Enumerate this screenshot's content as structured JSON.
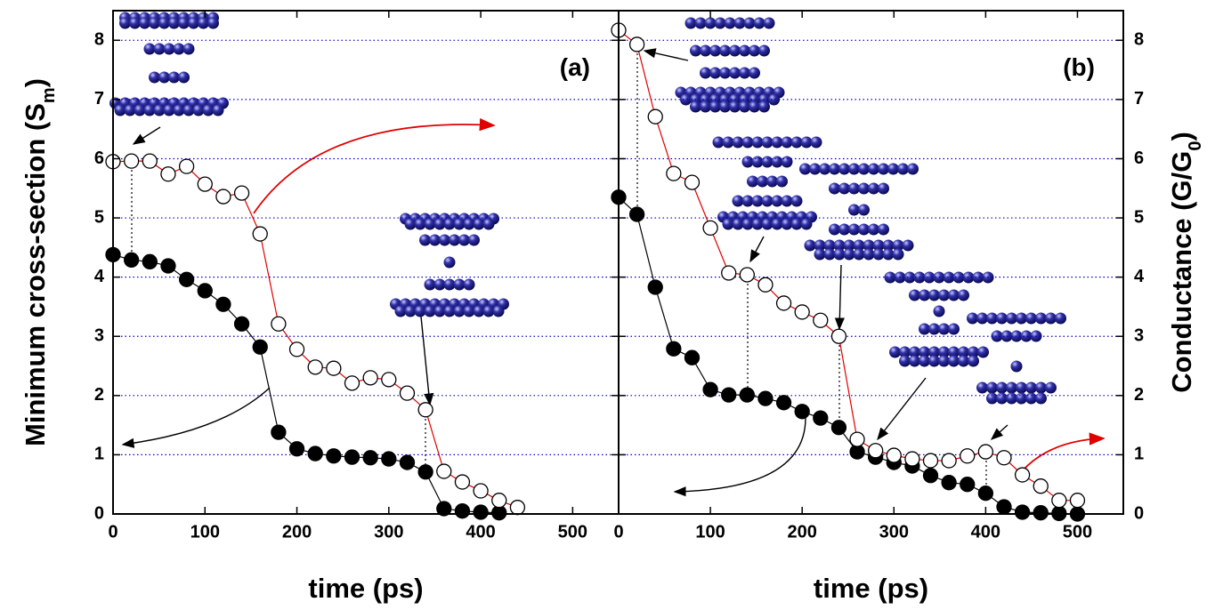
{
  "chart_data": [
    {
      "type": "line",
      "panel_label": "(a)",
      "x_label": "time (ps)",
      "y_label": [
        "Minimum cross-section (S",
        "m",
        ")"
      ],
      "xlim": [
        0,
        550
      ],
      "xticks": [
        0,
        100,
        200,
        300,
        400,
        500
      ],
      "ylim": [
        0,
        8.5
      ],
      "yticks": [
        0,
        1,
        2,
        3,
        4,
        5,
        6,
        7,
        8
      ],
      "grid": true,
      "grid_color": "#0000cc",
      "series": [
        {
          "color": "#000000",
          "line_color": "#000000",
          "x": [
            0,
            20,
            40,
            60,
            80,
            100,
            120,
            140,
            160,
            180,
            200,
            220,
            240,
            260,
            280,
            300,
            320,
            340,
            360,
            380,
            400,
            420
          ],
          "values": [
            4.38,
            4.29,
            4.26,
            4.19,
            3.96,
            3.77,
            3.54,
            3.21,
            2.82,
            1.38,
            1.1,
            1.02,
            0.98,
            0.96,
            0.95,
            0.93,
            0.87,
            0.71,
            0.09,
            0.05,
            0.03,
            0.02
          ]
        },
        {
          "color": "#ffffff",
          "line_color": "#e00000",
          "x": [
            0,
            20,
            40,
            60,
            80,
            100,
            120,
            140,
            160,
            180,
            200,
            220,
            240,
            260,
            280,
            300,
            320,
            340,
            360,
            380,
            400,
            420,
            440
          ],
          "values": [
            5.95,
            5.96,
            5.96,
            5.74,
            5.87,
            5.57,
            5.36,
            5.42,
            4.73,
            3.21,
            2.78,
            2.48,
            2.46,
            2.21,
            2.3,
            2.27,
            2.04,
            1.76,
            0.72,
            0.54,
            0.39,
            0.23,
            0.11
          ]
        }
      ]
    },
    {
      "type": "line",
      "panel_label": "(b)",
      "x_label": "time (ps)",
      "y2_label": [
        "Conductance (G/G",
        "0",
        ")"
      ],
      "xlim": [
        0,
        550
      ],
      "xticks": [
        0,
        100,
        200,
        300,
        400,
        500
      ],
      "y2lim": [
        0,
        8.5
      ],
      "y2ticks": [
        0,
        1,
        2,
        3,
        4,
        5,
        6,
        7,
        8
      ],
      "grid": true,
      "grid_color": "#0000cc",
      "series": [
        {
          "color": "#000000",
          "line_color": "#000000",
          "axis": "y2",
          "x": [
            0,
            20,
            40,
            60,
            80,
            100,
            120,
            140,
            160,
            180,
            200,
            220,
            240,
            260,
            280,
            300,
            320,
            340,
            360,
            380,
            400,
            420,
            440,
            460,
            480,
            500
          ],
          "values": [
            5.35,
            5.06,
            3.83,
            2.79,
            2.64,
            2.1,
            2.01,
            2.01,
            1.95,
            1.88,
            1.73,
            1.62,
            1.46,
            1.05,
            0.96,
            0.87,
            0.81,
            0.65,
            0.53,
            0.5,
            0.35,
            0.12,
            0.03,
            0.02,
            0.01,
            0
          ]
        },
        {
          "color": "#ffffff",
          "line_color": "#e00000",
          "axis": "y2",
          "x": [
            0,
            20,
            40,
            60,
            80,
            100,
            120,
            140,
            160,
            180,
            200,
            220,
            240,
            260,
            280,
            300,
            320,
            340,
            360,
            380,
            400,
            420,
            440,
            460,
            480,
            500
          ],
          "values": [
            8.17,
            7.93,
            6.71,
            5.75,
            5.6,
            4.83,
            4.07,
            4.04,
            3.87,
            3.56,
            3.41,
            3.27,
            3.0,
            1.26,
            1.07,
            0.99,
            0.93,
            0.9,
            0.9,
            0.98,
            1.05,
            0.95,
            0.66,
            0.47,
            0.23,
            0.23
          ]
        }
      ]
    }
  ]
}
